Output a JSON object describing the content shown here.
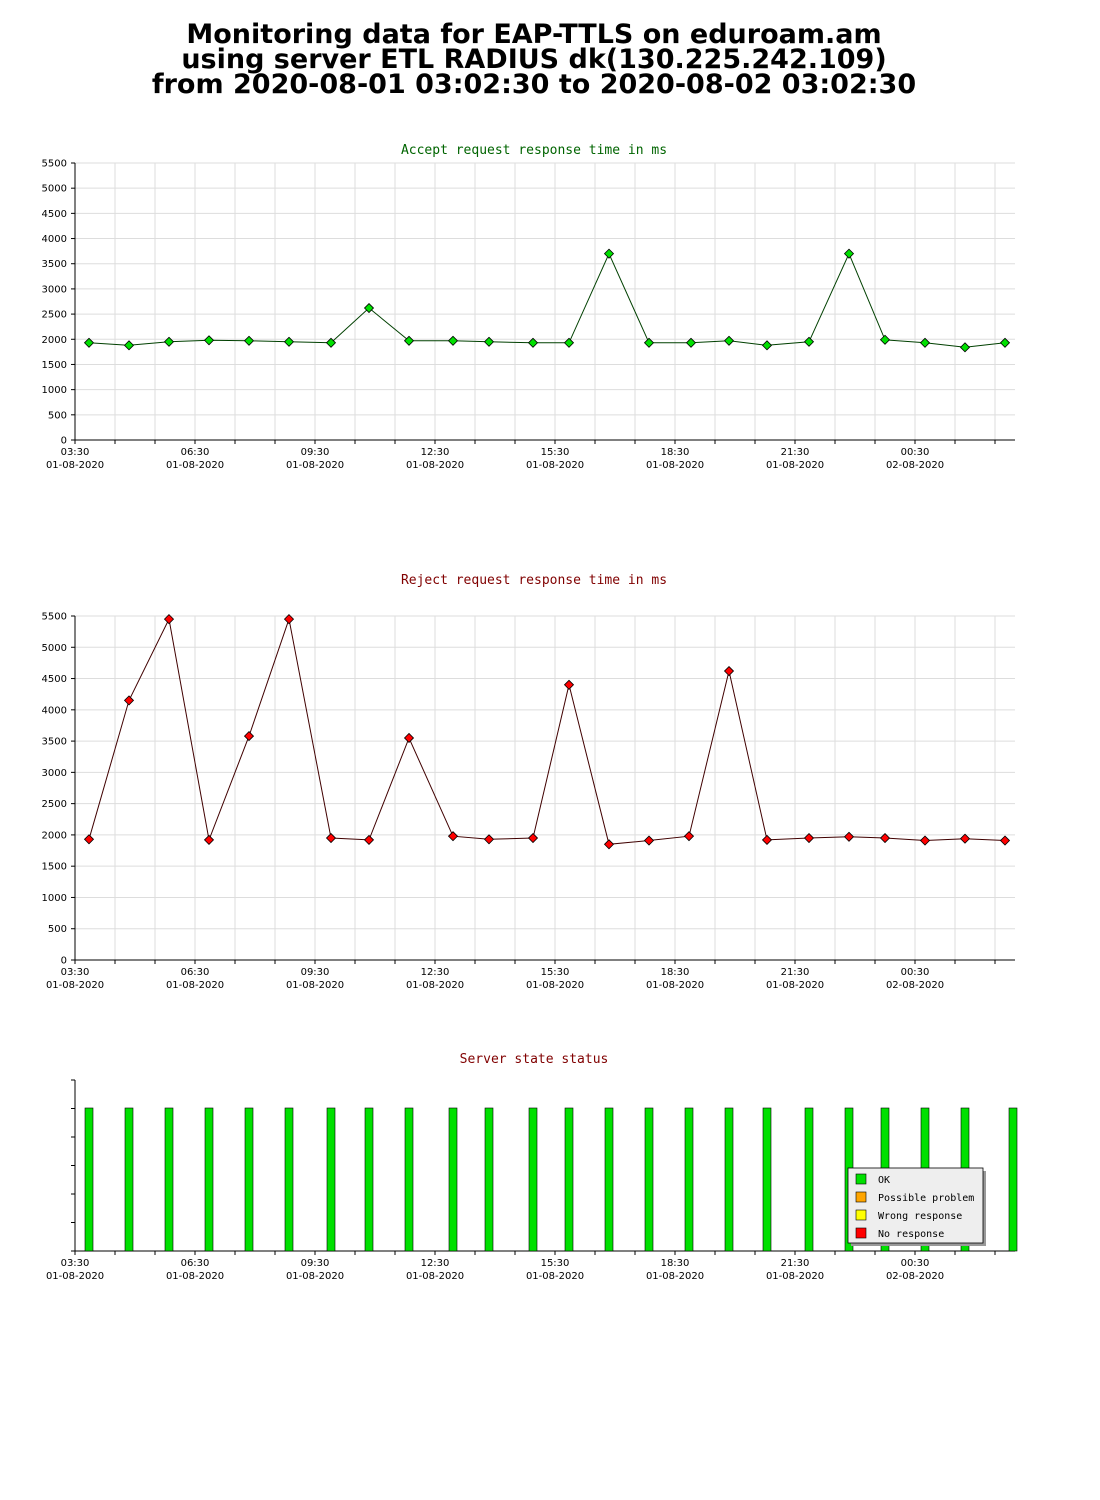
{
  "title": {
    "line1": "Monitoring data for EAP-TTLS on eduroam.am",
    "line2": "using server ETL RADIUS dk(130.225.242.109)",
    "line3": "from 2020-08-01 03:02:30 to 2020-08-02 03:02:30"
  },
  "colors": {
    "accept_title": "#006400",
    "reject_title": "#800000",
    "status_title": "#800000",
    "grid": "#dddddd",
    "accept_point": "#00e000",
    "accept_line": "#004000",
    "reject_point": "#ff0000",
    "reject_line": "#400000"
  },
  "x_ticks": [
    {
      "time": "03:30",
      "date": "01-08-2020"
    },
    {
      "time": "06:30",
      "date": "01-08-2020"
    },
    {
      "time": "09:30",
      "date": "01-08-2020"
    },
    {
      "time": "12:30",
      "date": "01-08-2020"
    },
    {
      "time": "15:30",
      "date": "01-08-2020"
    },
    {
      "time": "18:30",
      "date": "01-08-2020"
    },
    {
      "time": "21:30",
      "date": "01-08-2020"
    },
    {
      "time": "00:30",
      "date": "02-08-2020"
    }
  ],
  "chart_data": [
    {
      "type": "line",
      "title": "Accept request response time in ms",
      "ylim": [
        0,
        5500
      ],
      "y_ticks": [
        0,
        500,
        1000,
        1500,
        2000,
        2500,
        3000,
        3500,
        4000,
        4500,
        5000,
        5500
      ],
      "x_hours": [
        3.85,
        4.85,
        5.85,
        6.85,
        7.85,
        8.85,
        9.9,
        10.85,
        11.85,
        12.95,
        13.85,
        14.95,
        15.85,
        16.85,
        17.85,
        18.9,
        19.85,
        20.8,
        21.85,
        22.85,
        23.75,
        24.75,
        25.75,
        26.75
      ],
      "values": [
        1930,
        1880,
        1950,
        1980,
        1970,
        1950,
        1930,
        2620,
        1970,
        1970,
        1950,
        1930,
        1930,
        3700,
        1930,
        1930,
        1970,
        1880,
        1950,
        3700,
        1990,
        1930,
        1840,
        1930
      ]
    },
    {
      "type": "line",
      "title": "Reject request response time in ms",
      "ylim": [
        0,
        5500
      ],
      "y_ticks": [
        0,
        500,
        1000,
        1500,
        2000,
        2500,
        3000,
        3500,
        4000,
        4500,
        5000,
        5500
      ],
      "x_hours": [
        3.85,
        4.85,
        5.85,
        6.85,
        7.85,
        8.85,
        9.9,
        10.85,
        11.85,
        12.95,
        13.85,
        14.95,
        15.85,
        16.85,
        17.85,
        18.85,
        19.85,
        20.8,
        21.85,
        22.85,
        23.75,
        24.75,
        25.75,
        26.75
      ],
      "values": [
        1930,
        4150,
        5450,
        1920,
        3580,
        5450,
        1950,
        1920,
        3550,
        1980,
        1930,
        1950,
        4400,
        1850,
        1910,
        1980,
        4620,
        1920,
        1950,
        1970,
        1950,
        1910,
        1940,
        1910
      ]
    },
    {
      "type": "bar",
      "title": "Server state status",
      "x_hours": [
        3.85,
        4.85,
        5.85,
        6.85,
        7.85,
        8.85,
        9.9,
        10.85,
        11.85,
        12.95,
        13.85,
        14.95,
        15.85,
        16.85,
        17.85,
        18.85,
        19.85,
        20.8,
        21.85,
        22.85,
        23.75,
        24.75,
        25.75,
        26.95
      ],
      "states": [
        "OK",
        "OK",
        "OK",
        "OK",
        "OK",
        "OK",
        "OK",
        "OK",
        "OK",
        "OK",
        "OK",
        "OK",
        "OK",
        "OK",
        "OK",
        "OK",
        "OK",
        "OK",
        "OK",
        "OK",
        "OK",
        "OK",
        "OK",
        "OK"
      ],
      "legend": [
        {
          "label": "OK",
          "color": "#00e000"
        },
        {
          "label": "Possible problem",
          "color": "#ffa500"
        },
        {
          "label": "Wrong response",
          "color": "#ffff00"
        },
        {
          "label": "No response",
          "color": "#ff0000"
        }
      ],
      "legend_position": "bottom-right"
    }
  ]
}
